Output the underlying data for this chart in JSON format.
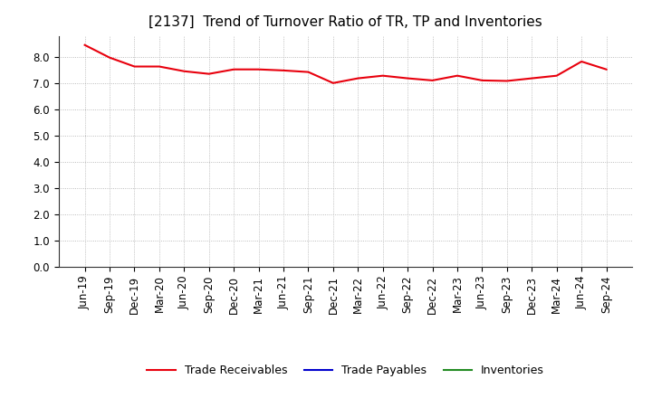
{
  "title": "[2137]  Trend of Turnover Ratio of TR, TP and Inventories",
  "x_labels": [
    "Jun-19",
    "Sep-19",
    "Dec-19",
    "Mar-20",
    "Jun-20",
    "Sep-20",
    "Dec-20",
    "Mar-21",
    "Jun-21",
    "Sep-21",
    "Dec-21",
    "Mar-22",
    "Jun-22",
    "Sep-22",
    "Dec-22",
    "Mar-23",
    "Jun-23",
    "Sep-23",
    "Dec-23",
    "Mar-24",
    "Jun-24",
    "Sep-24"
  ],
  "trade_receivables": [
    8.45,
    7.97,
    7.63,
    7.63,
    7.45,
    7.35,
    7.52,
    7.52,
    7.48,
    7.42,
    7.0,
    7.18,
    7.28,
    7.18,
    7.1,
    7.28,
    7.1,
    7.08,
    7.18,
    7.28,
    7.82,
    7.52
  ],
  "trade_payables": [
    null,
    null,
    null,
    null,
    null,
    null,
    null,
    null,
    null,
    null,
    null,
    null,
    null,
    null,
    null,
    null,
    null,
    null,
    null,
    null,
    null,
    null
  ],
  "inventories": [
    null,
    null,
    null,
    null,
    null,
    null,
    null,
    null,
    null,
    null,
    null,
    null,
    null,
    null,
    null,
    null,
    null,
    null,
    null,
    null,
    null,
    null
  ],
  "ylim": [
    0,
    8.8
  ],
  "yticks": [
    0.0,
    1.0,
    2.0,
    3.0,
    4.0,
    5.0,
    6.0,
    7.0,
    8.0
  ],
  "line_color_tr": "#e8000d",
  "line_color_tp": "#0000cd",
  "line_color_inv": "#228b22",
  "legend_labels": [
    "Trade Receivables",
    "Trade Payables",
    "Inventories"
  ],
  "background_color": "#ffffff",
  "grid_color": "#aaaaaa",
  "title_fontsize": 11,
  "tick_fontsize": 8.5,
  "legend_fontsize": 9
}
